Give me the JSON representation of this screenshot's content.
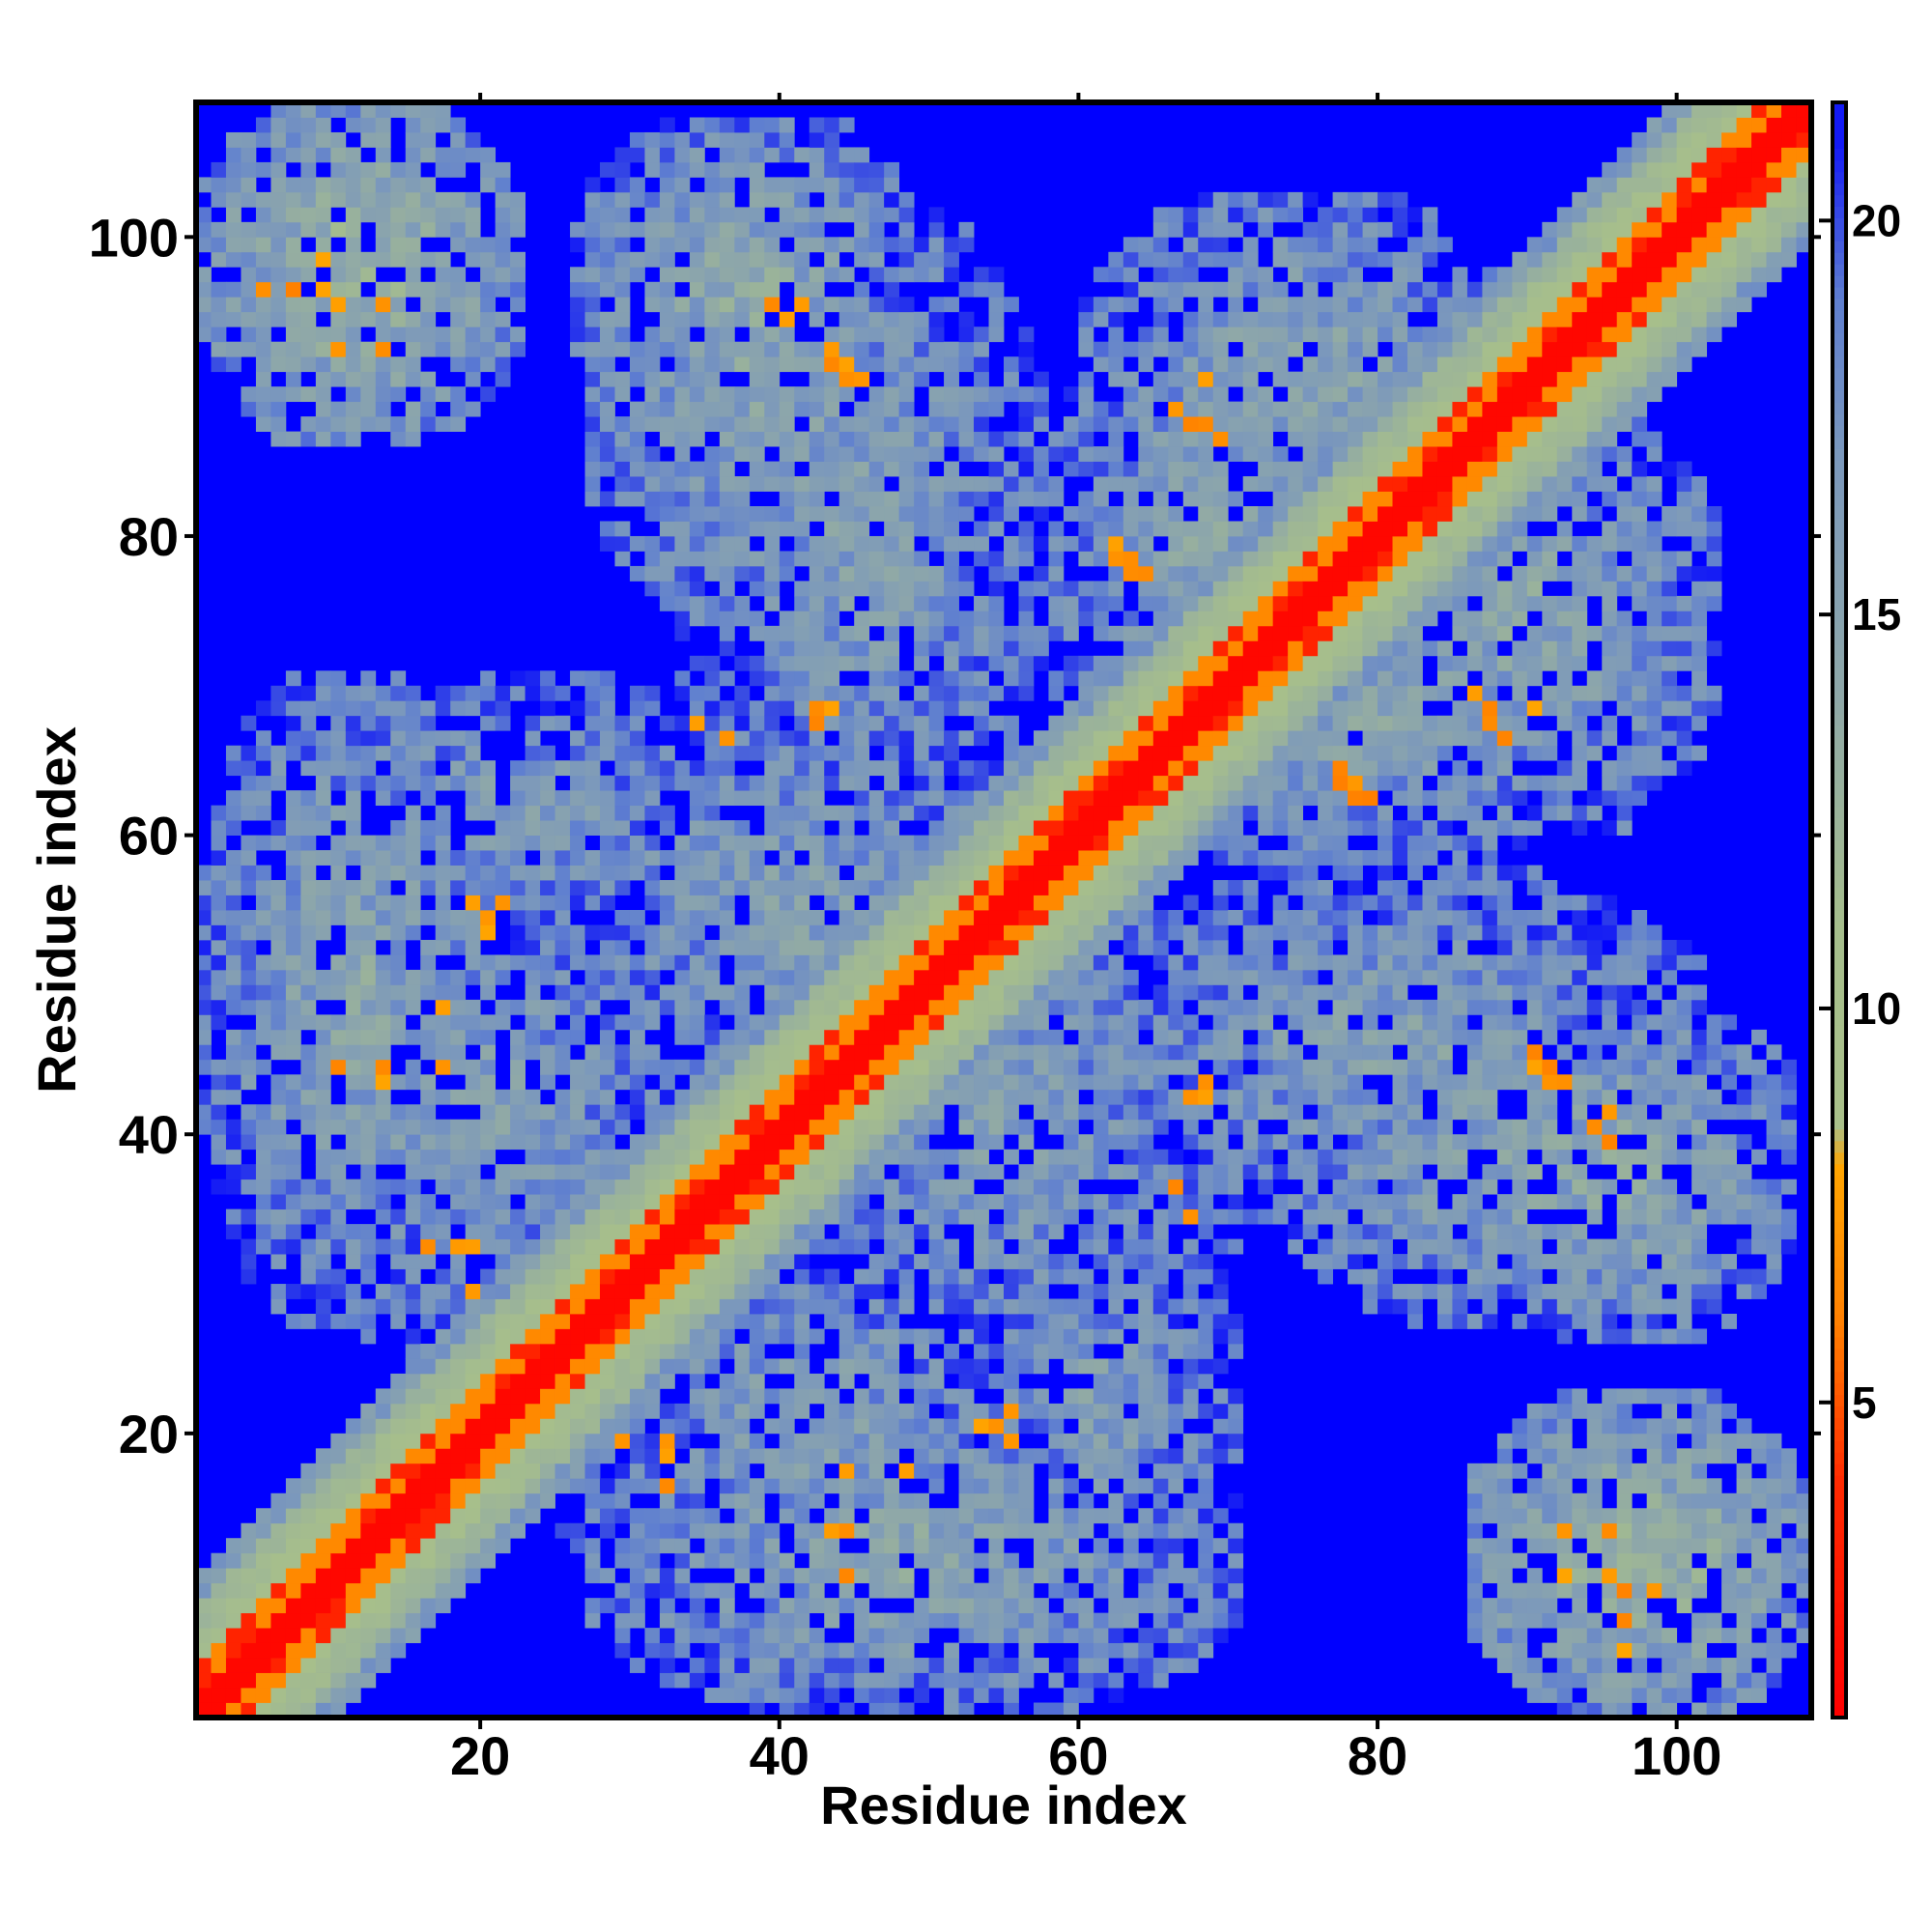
{
  "chart_data": {
    "type": "heatmap",
    "title": "",
    "xlabel": "Residue index",
    "ylabel": "Residue index",
    "xlim": [
      1,
      109
    ],
    "ylim": [
      1,
      109
    ],
    "x_ticks": [
      20,
      40,
      60,
      80,
      100
    ],
    "y_ticks": [
      20,
      40,
      60,
      80,
      100
    ],
    "x_tick_labels": [
      "20",
      "40",
      "60",
      "80",
      "100"
    ],
    "y_tick_labels": [
      "20",
      "40",
      "60",
      "80",
      "100"
    ],
    "n_residues": 108,
    "value_unit": "distance",
    "colorbar": {
      "range": [
        1,
        21.5
      ],
      "ticks": [
        5,
        10,
        15,
        20
      ],
      "tick_labels": [
        "5",
        "10",
        "15",
        "20"
      ],
      "stops": [
        {
          "value": 1,
          "color": "#ff0000"
        },
        {
          "value": 4,
          "color": "#ff2a00"
        },
        {
          "value": 6,
          "color": "#ff7f00"
        },
        {
          "value": 8,
          "color": "#ffa500"
        },
        {
          "value": 8.5,
          "color": "#a9c08a"
        },
        {
          "value": 11,
          "color": "#a6be8c"
        },
        {
          "value": 14,
          "color": "#8fa8a8"
        },
        {
          "value": 17,
          "color": "#7b98bc"
        },
        {
          "value": 19,
          "color": "#5f7fd0"
        },
        {
          "value": 21.5,
          "color": "#0000ff"
        }
      ],
      "cutoff_value": 21,
      "cutoff_color": "#0000ff"
    },
    "diagonal_band": {
      "core_max_offset": 1,
      "orange_max_offset": 3,
      "green_max_offset": 7,
      "edge_max_offset": 9
    },
    "contact_regions": [
      {
        "x": [
          1,
          21
        ],
        "y": [
          89,
          108
        ],
        "level": 12.5
      },
      {
        "x": [
          27,
          50
        ],
        "y": [
          73,
          107
        ],
        "level": 14
      },
      {
        "x": [
          58,
          80
        ],
        "y": [
          60,
          96
        ],
        "level": 14
      },
      {
        "x": [
          78,
          102
        ],
        "y": [
          60,
          88
        ],
        "level": 14
      },
      {
        "x": [
          1,
          21
        ],
        "y": [
          27,
          70
        ],
        "level": 14
      },
      {
        "x": [
          22,
          58
        ],
        "y": [
          40,
          70
        ],
        "level": 15
      },
      {
        "x": [
          36,
          68
        ],
        "y": [
          30,
          56
        ],
        "level": 15
      },
      {
        "x": [
          60,
          101
        ],
        "y": [
          34,
          57
        ],
        "level": 14.5
      },
      {
        "x": [
          85,
          107
        ],
        "y": [
          26,
          48
        ],
        "level": 13.5
      },
      {
        "x": [
          25,
          58
        ],
        "y": [
          5,
          35
        ],
        "level": 15
      },
      {
        "x": [
          52,
          70
        ],
        "y": [
          8,
          35
        ],
        "level": 15
      },
      {
        "x": [
          86,
          108
        ],
        "y": [
          1,
          22
        ],
        "level": 12.5
      }
    ],
    "close_contacts": [
      {
        "x": 5,
        "y": 96
      },
      {
        "x": 9,
        "y": 96
      },
      {
        "x": 13,
        "y": 95
      },
      {
        "x": 10,
        "y": 92
      },
      {
        "x": 40,
        "y": 94
      },
      {
        "x": 43,
        "y": 91
      },
      {
        "x": 44,
        "y": 90
      },
      {
        "x": 45,
        "y": 90
      },
      {
        "x": 66,
        "y": 88
      },
      {
        "x": 67,
        "y": 87
      },
      {
        "x": 62,
        "y": 79
      },
      {
        "x": 63,
        "y": 78
      },
      {
        "x": 64,
        "y": 77
      },
      {
        "x": 63,
        "y": 66
      },
      {
        "x": 64,
        "y": 66
      },
      {
        "x": 42,
        "y": 68
      },
      {
        "x": 43,
        "y": 68
      },
      {
        "x": 34,
        "y": 67
      },
      {
        "x": 36,
        "y": 66
      },
      {
        "x": 77,
        "y": 63
      },
      {
        "x": 78,
        "y": 62
      },
      {
        "x": 86,
        "y": 69
      },
      {
        "x": 87,
        "y": 68
      },
      {
        "x": 90,
        "y": 68
      },
      {
        "x": 19,
        "y": 55
      },
      {
        "x": 20,
        "y": 53
      },
      {
        "x": 13,
        "y": 44
      },
      {
        "x": 17,
        "y": 44
      },
      {
        "x": 44,
        "y": 45
      },
      {
        "x": 48,
        "y": 44
      },
      {
        "x": 36,
        "y": 38
      },
      {
        "x": 38,
        "y": 37
      },
      {
        "x": 67,
        "y": 42
      },
      {
        "x": 66,
        "y": 36
      },
      {
        "x": 90,
        "y": 45
      },
      {
        "x": 91,
        "y": 44
      },
      {
        "x": 92,
        "y": 43
      },
      {
        "x": 95,
        "y": 41
      },
      {
        "x": 95,
        "y": 39
      },
      {
        "x": 16,
        "y": 32
      },
      {
        "x": 19,
        "y": 32
      },
      {
        "x": 19,
        "y": 29
      },
      {
        "x": 20,
        "y": 28
      },
      {
        "x": 28,
        "y": 20
      },
      {
        "x": 29,
        "y": 19
      },
      {
        "x": 32,
        "y": 18
      },
      {
        "x": 54,
        "y": 20
      },
      {
        "x": 55,
        "y": 21
      },
      {
        "x": 48,
        "y": 17
      },
      {
        "x": 43,
        "y": 13
      },
      {
        "x": 44,
        "y": 10
      },
      {
        "x": 92,
        "y": 13
      },
      {
        "x": 95,
        "y": 10
      },
      {
        "x": 98,
        "y": 9
      },
      {
        "x": 96,
        "y": 7
      }
    ]
  }
}
